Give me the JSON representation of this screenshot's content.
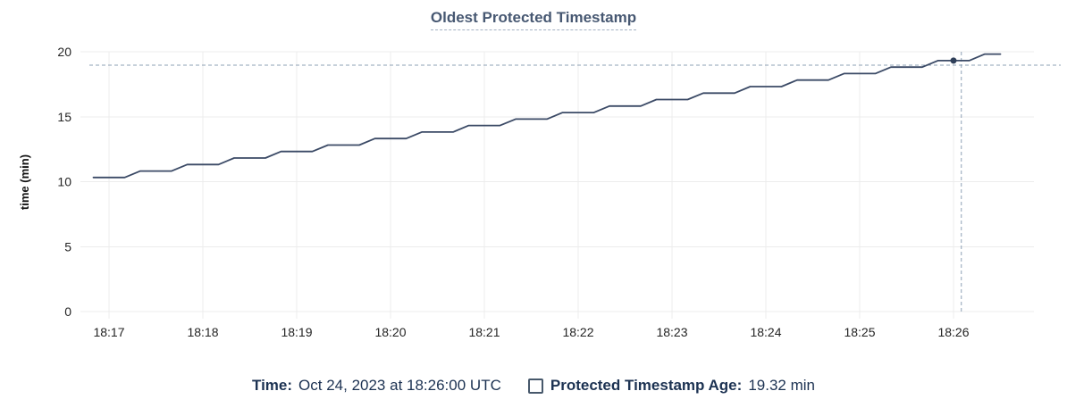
{
  "title": "Oldest Protected Timestamp",
  "y_axis_label": "time (min)",
  "footer": {
    "time_label": "Time:",
    "time_value": "Oct 24, 2023 at 18:26:00 UTC",
    "series_label": "Protected Timestamp Age:",
    "series_value": "19.32 min"
  },
  "colors": {
    "title": "#475872",
    "title_underline": "#a3b0c2",
    "series_line": "#3b4a66",
    "dot": "#2f3f59",
    "crosshair": "#8ea0b5",
    "gridline": "#ececec",
    "tick_label": "#242424",
    "footer_text": "#1c3252",
    "legend_box_border": "#47586b"
  },
  "chart_data": {
    "type": "line",
    "title": "Oldest Protected Timestamp",
    "xlabel": "",
    "ylabel": "time (min)",
    "ylim": [
      0,
      20
    ],
    "y_ticks": [
      0,
      5,
      10,
      15,
      20
    ],
    "x_ticks": [
      "18:17",
      "18:18",
      "18:19",
      "18:20",
      "18:21",
      "18:22",
      "18:23",
      "18:24",
      "18:25",
      "18:26"
    ],
    "grid": true,
    "legend_position": "bottom",
    "series": [
      {
        "name": "Protected Timestamp Age",
        "unit": "min",
        "x": [
          "18:16:50",
          "18:17:00",
          "18:17:10",
          "18:17:20",
          "18:17:30",
          "18:17:40",
          "18:17:50",
          "18:18:00",
          "18:18:10",
          "18:18:20",
          "18:18:30",
          "18:18:40",
          "18:18:50",
          "18:19:00",
          "18:19:10",
          "18:19:20",
          "18:19:30",
          "18:19:40",
          "18:19:50",
          "18:20:00",
          "18:20:10",
          "18:20:20",
          "18:20:30",
          "18:20:40",
          "18:20:50",
          "18:21:00",
          "18:21:10",
          "18:21:20",
          "18:21:30",
          "18:21:40",
          "18:21:50",
          "18:22:00",
          "18:22:10",
          "18:22:20",
          "18:22:30",
          "18:22:40",
          "18:22:50",
          "18:23:00",
          "18:23:10",
          "18:23:20",
          "18:23:30",
          "18:23:40",
          "18:23:50",
          "18:24:00",
          "18:24:10",
          "18:24:20",
          "18:24:30",
          "18:24:40",
          "18:24:50",
          "18:25:00",
          "18:25:10",
          "18:25:20",
          "18:25:30",
          "18:25:40",
          "18:25:50",
          "18:26:00",
          "18:26:10",
          "18:26:20",
          "18:26:30"
        ],
        "y": [
          10.32,
          10.32,
          10.32,
          10.82,
          10.82,
          10.82,
          11.32,
          11.32,
          11.32,
          11.82,
          11.82,
          11.82,
          12.32,
          12.32,
          12.32,
          12.82,
          12.82,
          12.82,
          13.32,
          13.32,
          13.32,
          13.82,
          13.82,
          13.82,
          14.32,
          14.32,
          14.32,
          14.82,
          14.82,
          14.82,
          15.32,
          15.32,
          15.32,
          15.82,
          15.82,
          15.82,
          16.32,
          16.32,
          16.32,
          16.82,
          16.82,
          16.82,
          17.32,
          17.32,
          17.32,
          17.82,
          17.82,
          17.82,
          18.32,
          18.32,
          18.32,
          18.82,
          18.82,
          18.82,
          19.32,
          19.32,
          19.32,
          19.82,
          19.82
        ]
      }
    ],
    "hover_point": {
      "time": "18:26:00",
      "value": 19.32
    },
    "crosshair": {
      "time": "18:26:05",
      "value": 18.97
    }
  }
}
